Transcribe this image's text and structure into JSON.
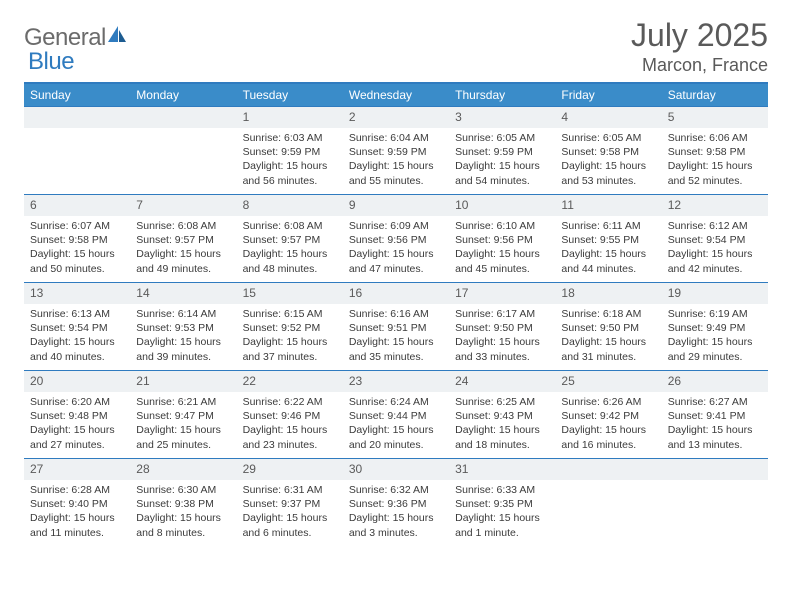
{
  "logo": {
    "text_general": "General",
    "text_blue": "Blue"
  },
  "header": {
    "month_title": "July 2025",
    "location": "Marcon, France"
  },
  "colors": {
    "header_bg": "#3a8cc9",
    "border": "#2f7bbf",
    "daynum_bg": "#eef1f3",
    "text_gray": "#5a5a5a",
    "body_text": "#3b3b3b"
  },
  "weekdays": [
    "Sunday",
    "Monday",
    "Tuesday",
    "Wednesday",
    "Thursday",
    "Friday",
    "Saturday"
  ],
  "weeks": [
    [
      {
        "blank": true
      },
      {
        "blank": true
      },
      {
        "day": "1",
        "sunrise": "Sunrise: 6:03 AM",
        "sunset": "Sunset: 9:59 PM",
        "daylight": "Daylight: 15 hours and 56 minutes."
      },
      {
        "day": "2",
        "sunrise": "Sunrise: 6:04 AM",
        "sunset": "Sunset: 9:59 PM",
        "daylight": "Daylight: 15 hours and 55 minutes."
      },
      {
        "day": "3",
        "sunrise": "Sunrise: 6:05 AM",
        "sunset": "Sunset: 9:59 PM",
        "daylight": "Daylight: 15 hours and 54 minutes."
      },
      {
        "day": "4",
        "sunrise": "Sunrise: 6:05 AM",
        "sunset": "Sunset: 9:58 PM",
        "daylight": "Daylight: 15 hours and 53 minutes."
      },
      {
        "day": "5",
        "sunrise": "Sunrise: 6:06 AM",
        "sunset": "Sunset: 9:58 PM",
        "daylight": "Daylight: 15 hours and 52 minutes."
      }
    ],
    [
      {
        "day": "6",
        "sunrise": "Sunrise: 6:07 AM",
        "sunset": "Sunset: 9:58 PM",
        "daylight": "Daylight: 15 hours and 50 minutes."
      },
      {
        "day": "7",
        "sunrise": "Sunrise: 6:08 AM",
        "sunset": "Sunset: 9:57 PM",
        "daylight": "Daylight: 15 hours and 49 minutes."
      },
      {
        "day": "8",
        "sunrise": "Sunrise: 6:08 AM",
        "sunset": "Sunset: 9:57 PM",
        "daylight": "Daylight: 15 hours and 48 minutes."
      },
      {
        "day": "9",
        "sunrise": "Sunrise: 6:09 AM",
        "sunset": "Sunset: 9:56 PM",
        "daylight": "Daylight: 15 hours and 47 minutes."
      },
      {
        "day": "10",
        "sunrise": "Sunrise: 6:10 AM",
        "sunset": "Sunset: 9:56 PM",
        "daylight": "Daylight: 15 hours and 45 minutes."
      },
      {
        "day": "11",
        "sunrise": "Sunrise: 6:11 AM",
        "sunset": "Sunset: 9:55 PM",
        "daylight": "Daylight: 15 hours and 44 minutes."
      },
      {
        "day": "12",
        "sunrise": "Sunrise: 6:12 AM",
        "sunset": "Sunset: 9:54 PM",
        "daylight": "Daylight: 15 hours and 42 minutes."
      }
    ],
    [
      {
        "day": "13",
        "sunrise": "Sunrise: 6:13 AM",
        "sunset": "Sunset: 9:54 PM",
        "daylight": "Daylight: 15 hours and 40 minutes."
      },
      {
        "day": "14",
        "sunrise": "Sunrise: 6:14 AM",
        "sunset": "Sunset: 9:53 PM",
        "daylight": "Daylight: 15 hours and 39 minutes."
      },
      {
        "day": "15",
        "sunrise": "Sunrise: 6:15 AM",
        "sunset": "Sunset: 9:52 PM",
        "daylight": "Daylight: 15 hours and 37 minutes."
      },
      {
        "day": "16",
        "sunrise": "Sunrise: 6:16 AM",
        "sunset": "Sunset: 9:51 PM",
        "daylight": "Daylight: 15 hours and 35 minutes."
      },
      {
        "day": "17",
        "sunrise": "Sunrise: 6:17 AM",
        "sunset": "Sunset: 9:50 PM",
        "daylight": "Daylight: 15 hours and 33 minutes."
      },
      {
        "day": "18",
        "sunrise": "Sunrise: 6:18 AM",
        "sunset": "Sunset: 9:50 PM",
        "daylight": "Daylight: 15 hours and 31 minutes."
      },
      {
        "day": "19",
        "sunrise": "Sunrise: 6:19 AM",
        "sunset": "Sunset: 9:49 PM",
        "daylight": "Daylight: 15 hours and 29 minutes."
      }
    ],
    [
      {
        "day": "20",
        "sunrise": "Sunrise: 6:20 AM",
        "sunset": "Sunset: 9:48 PM",
        "daylight": "Daylight: 15 hours and 27 minutes."
      },
      {
        "day": "21",
        "sunrise": "Sunrise: 6:21 AM",
        "sunset": "Sunset: 9:47 PM",
        "daylight": "Daylight: 15 hours and 25 minutes."
      },
      {
        "day": "22",
        "sunrise": "Sunrise: 6:22 AM",
        "sunset": "Sunset: 9:46 PM",
        "daylight": "Daylight: 15 hours and 23 minutes."
      },
      {
        "day": "23",
        "sunrise": "Sunrise: 6:24 AM",
        "sunset": "Sunset: 9:44 PM",
        "daylight": "Daylight: 15 hours and 20 minutes."
      },
      {
        "day": "24",
        "sunrise": "Sunrise: 6:25 AM",
        "sunset": "Sunset: 9:43 PM",
        "daylight": "Daylight: 15 hours and 18 minutes."
      },
      {
        "day": "25",
        "sunrise": "Sunrise: 6:26 AM",
        "sunset": "Sunset: 9:42 PM",
        "daylight": "Daylight: 15 hours and 16 minutes."
      },
      {
        "day": "26",
        "sunrise": "Sunrise: 6:27 AM",
        "sunset": "Sunset: 9:41 PM",
        "daylight": "Daylight: 15 hours and 13 minutes."
      }
    ],
    [
      {
        "day": "27",
        "sunrise": "Sunrise: 6:28 AM",
        "sunset": "Sunset: 9:40 PM",
        "daylight": "Daylight: 15 hours and 11 minutes."
      },
      {
        "day": "28",
        "sunrise": "Sunrise: 6:30 AM",
        "sunset": "Sunset: 9:38 PM",
        "daylight": "Daylight: 15 hours and 8 minutes."
      },
      {
        "day": "29",
        "sunrise": "Sunrise: 6:31 AM",
        "sunset": "Sunset: 9:37 PM",
        "daylight": "Daylight: 15 hours and 6 minutes."
      },
      {
        "day": "30",
        "sunrise": "Sunrise: 6:32 AM",
        "sunset": "Sunset: 9:36 PM",
        "daylight": "Daylight: 15 hours and 3 minutes."
      },
      {
        "day": "31",
        "sunrise": "Sunrise: 6:33 AM",
        "sunset": "Sunset: 9:35 PM",
        "daylight": "Daylight: 15 hours and 1 minute."
      },
      {
        "blank": true
      },
      {
        "blank": true
      }
    ]
  ]
}
